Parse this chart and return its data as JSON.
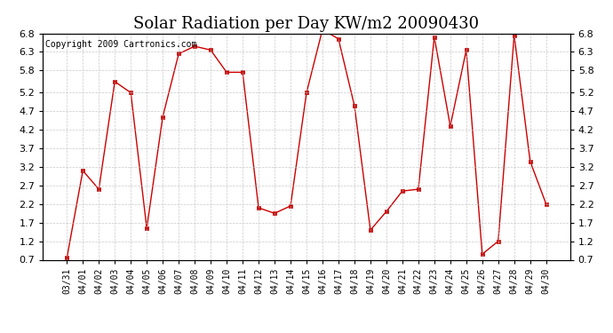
{
  "title": "Solar Radiation per Day KW/m2 20090430",
  "copyright": "Copyright 2009 Cartronics.com",
  "labels": [
    "03/31",
    "04/01",
    "04/02",
    "04/03",
    "04/04",
    "04/05",
    "04/06",
    "04/07",
    "04/08",
    "04/09",
    "04/10",
    "04/11",
    "04/12",
    "04/13",
    "04/14",
    "04/15",
    "04/16",
    "04/17",
    "04/18",
    "04/19",
    "04/20",
    "04/21",
    "04/22",
    "04/23",
    "04/24",
    "04/25",
    "04/26",
    "04/27",
    "04/28",
    "04/29",
    "04/30"
  ],
  "values": [
    0.75,
    3.1,
    2.6,
    5.5,
    5.2,
    1.55,
    4.55,
    6.25,
    6.45,
    6.35,
    5.75,
    5.75,
    2.1,
    1.95,
    2.15,
    5.2,
    6.9,
    6.65,
    4.85,
    1.5,
    2.0,
    2.55,
    2.6,
    6.7,
    4.3,
    6.35,
    0.85,
    1.2,
    6.75,
    3.35,
    2.2
  ],
  "line_color": "#cc0000",
  "marker": "s",
  "marker_size": 3,
  "bg_color": "#ffffff",
  "grid_color": "#bbbbbb",
  "ylim_min": 0.7,
  "ylim_max": 6.8,
  "yticks": [
    0.7,
    1.2,
    1.7,
    2.2,
    2.7,
    3.2,
    3.7,
    4.2,
    4.7,
    5.2,
    5.8,
    6.3,
    6.8
  ],
  "title_fontsize": 13,
  "copyright_fontsize": 7,
  "tick_fontsize": 7,
  "ytick_fontsize": 8
}
